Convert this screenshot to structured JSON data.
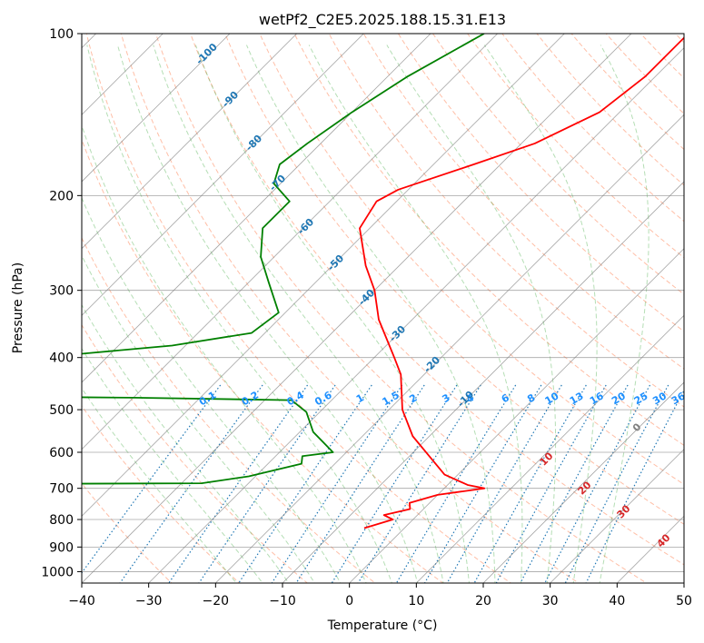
{
  "chart_data": {
    "type": "line",
    "title": "wetPf2_C2E5.2025.188.15.31.E13",
    "xlabel": "Temperature (°C)",
    "ylabel": "Pressure (hPa)",
    "xlim": [
      -40,
      50
    ],
    "ylim": [
      1050,
      100
    ],
    "y_scale": "log",
    "x_ticks": [
      -40,
      -30,
      -20,
      -10,
      0,
      10,
      20,
      30,
      40,
      50
    ],
    "y_ticks": [
      100,
      200,
      300,
      400,
      500,
      600,
      700,
      800,
      900,
      1000
    ],
    "grid": true,
    "colors": {
      "temperature": "#ff0000",
      "dewpoint": "#008000",
      "dry_adiabat": "#ff7f50",
      "moist_adiabat": "#2ca02c",
      "mixing_ratio": "#1f77b4",
      "isotherm": "#808080",
      "axes_frame": "#000000"
    },
    "series": [
      {
        "key": "temperature",
        "points": [
          [
            -31.5,
            100
          ],
          [
            -31.5,
            120
          ],
          [
            -33,
            140
          ],
          [
            -38,
            160
          ],
          [
            -44,
            175
          ],
          [
            -51.5,
            195
          ],
          [
            -53,
            205
          ],
          [
            -51.5,
            230
          ],
          [
            -45,
            270
          ],
          [
            -40,
            300
          ],
          [
            -35,
            340
          ],
          [
            -27,
            400
          ],
          [
            -23.5,
            430
          ],
          [
            -18,
            500
          ],
          [
            -12.5,
            560
          ],
          [
            -6,
            620
          ],
          [
            -2,
            660
          ],
          [
            3,
            690
          ],
          [
            6,
            700
          ],
          [
            0,
            720
          ],
          [
            -3,
            745
          ],
          [
            -2,
            765
          ],
          [
            -5,
            785
          ],
          [
            -3,
            800
          ],
          [
            -5,
            820
          ],
          [
            -6,
            830
          ]
        ]
      },
      {
        "key": "dewpoint",
        "points": [
          [
            -62,
            100
          ],
          [
            -67,
            120
          ],
          [
            -70,
            140
          ],
          [
            -72,
            160
          ],
          [
            -73,
            175
          ],
          [
            -71,
            190
          ],
          [
            -66,
            205
          ],
          [
            -66,
            230
          ],
          [
            -62,
            260
          ],
          [
            -57,
            290
          ],
          [
            -51,
            330
          ],
          [
            -52,
            360
          ],
          [
            -62,
            380
          ],
          [
            -80,
            400
          ],
          [
            -97,
            405
          ],
          [
            -105,
            430
          ],
          [
            -107,
            470
          ],
          [
            -60,
            475
          ],
          [
            -36,
            480
          ],
          [
            -32,
            505
          ],
          [
            -28,
            550
          ],
          [
            -22,
            600
          ],
          [
            -26,
            610
          ],
          [
            -25,
            630
          ],
          [
            -31,
            665
          ],
          [
            -37,
            685
          ],
          [
            -110,
            690
          ],
          [
            -115,
            745
          ],
          [
            -88,
            755
          ],
          [
            -100,
            768
          ],
          [
            -112,
            775
          ],
          [
            -115,
            805
          ],
          [
            -75,
            812
          ],
          [
            -63,
            830
          ],
          [
            -58,
            833
          ]
        ]
      }
    ],
    "dry_adiabat_labels": [
      "10",
      "20",
      "30",
      "40"
    ],
    "moist_adiabat_labels": [
      "-100",
      "-90",
      "-80",
      "-70",
      "-60",
      "-50",
      "-40",
      "-30",
      "-20",
      "-10",
      "0"
    ],
    "mixing_ratio_labels": [
      "0.1",
      "0.2",
      "0.4",
      "0.6",
      "1",
      "1.5",
      "2",
      "3",
      "4",
      "6",
      "8",
      "10",
      "13",
      "16",
      "20",
      "25",
      "30",
      "36"
    ]
  }
}
